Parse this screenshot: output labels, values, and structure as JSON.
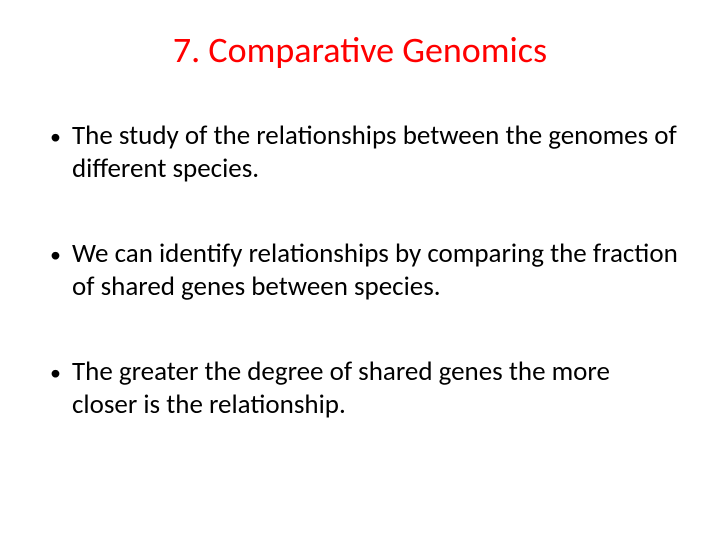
{
  "slide": {
    "title": "7. Comparative Genomics",
    "title_color": "#ff0000",
    "title_fontsize": 36,
    "body_color": "#000000",
    "body_fontsize": 27,
    "background_color": "#ffffff",
    "bullets": [
      {
        "text": "The study of the relationships between the genomes of different species."
      },
      {
        "text": "We can identify relationships by comparing the fraction of shared genes between species."
      },
      {
        "text": "The greater the degree of shared genes the more closer is the relationship."
      }
    ]
  }
}
